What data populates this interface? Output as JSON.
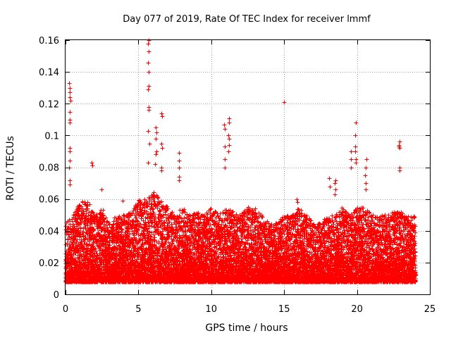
{
  "chart_data": {
    "type": "scatter",
    "title": "Day 077 of 2019, Rate Of TEC Index for receiver lmmf",
    "xlabel": "GPS time / hours",
    "ylabel": "ROTI / TECUs",
    "xlim": [
      0,
      25
    ],
    "ylim": [
      0,
      0.16
    ],
    "x_ticks": [
      0,
      5,
      10,
      15,
      20,
      25
    ],
    "x_tick_labels": [
      "0",
      "5",
      "10",
      "15",
      "20",
      "25"
    ],
    "y_ticks": [
      0,
      0.02,
      0.04,
      0.06,
      0.08,
      0.1,
      0.12,
      0.14,
      0.16
    ],
    "y_tick_labels": [
      "0",
      "0.02",
      "0.04",
      "0.06",
      "0.08",
      "0.1",
      "0.12",
      "0.14",
      "0.16"
    ],
    "grid": true,
    "marker": "plus",
    "color": "#ff0000",
    "series": [
      {
        "name": "ROTI",
        "baseline_profile": {
          "x": [
            0,
            0.5,
            1,
            1.5,
            2,
            2.5,
            3,
            3.5,
            4,
            4.5,
            5,
            5.5,
            6,
            6.5,
            7,
            7.5,
            8,
            8.5,
            9,
            9.5,
            10,
            10.5,
            11,
            11.5,
            12,
            12.5,
            13,
            13.5,
            14,
            14.5,
            15,
            15.5,
            16,
            16.5,
            17,
            17.5,
            18,
            18.5,
            19,
            19.5,
            20,
            20.5,
            21,
            21.5,
            22,
            22.5,
            23,
            23.5,
            24
          ],
          "upper_envelope": [
            0.045,
            0.05,
            0.058,
            0.06,
            0.05,
            0.055,
            0.045,
            0.05,
            0.05,
            0.052,
            0.06,
            0.06,
            0.065,
            0.06,
            0.055,
            0.05,
            0.055,
            0.05,
            0.052,
            0.05,
            0.055,
            0.05,
            0.055,
            0.052,
            0.05,
            0.055,
            0.055,
            0.05,
            0.045,
            0.045,
            0.05,
            0.05,
            0.055,
            0.05,
            0.045,
            0.045,
            0.05,
            0.05,
            0.055,
            0.05,
            0.055,
            0.055,
            0.05,
            0.05,
            0.05,
            0.052,
            0.052,
            0.05,
            0.05
          ],
          "typical_low": 0.008
        },
        "spikes": [
          {
            "x": 0.3,
            "values": [
              0.133,
              0.13,
              0.127,
              0.124,
              0.122,
              0.115,
              0.11,
              0.108,
              0.092,
              0.09,
              0.084,
              0.08,
              0.072,
              0.069
            ]
          },
          {
            "x": 1.8,
            "values": [
              0.083,
              0.081
            ]
          },
          {
            "x": 2.5,
            "values": [
              0.066
            ]
          },
          {
            "x": 3.9,
            "values": [
              0.059
            ]
          },
          {
            "x": 5.7,
            "values": [
              0.16,
              0.158,
              0.153,
              0.146,
              0.14,
              0.131,
              0.129,
              0.118,
              0.116,
              0.103,
              0.095,
              0.083
            ]
          },
          {
            "x": 6.2,
            "values": [
              0.105,
              0.102,
              0.098,
              0.09,
              0.088,
              0.082
            ]
          },
          {
            "x": 6.6,
            "values": [
              0.114,
              0.112,
              0.095,
              0.092,
              0.08,
              0.078
            ]
          },
          {
            "x": 7.8,
            "values": [
              0.089,
              0.084,
              0.08,
              0.074,
              0.072
            ]
          },
          {
            "x": 10.9,
            "values": [
              0.107,
              0.104,
              0.093,
              0.085,
              0.08
            ]
          },
          {
            "x": 11.2,
            "values": [
              0.111,
              0.108,
              0.1,
              0.098,
              0.094,
              0.09
            ]
          },
          {
            "x": 15.0,
            "values": [
              0.121
            ]
          },
          {
            "x": 15.9,
            "values": [
              0.06,
              0.058
            ]
          },
          {
            "x": 18.1,
            "values": [
              0.073,
              0.068
            ]
          },
          {
            "x": 18.5,
            "values": [
              0.072,
              0.07,
              0.066,
              0.063
            ]
          },
          {
            "x": 19.6,
            "values": [
              0.09,
              0.085,
              0.08
            ]
          },
          {
            "x": 19.9,
            "values": [
              0.108,
              0.1,
              0.093,
              0.09,
              0.085,
              0.083
            ]
          },
          {
            "x": 20.6,
            "values": [
              0.085,
              0.08,
              0.075,
              0.07,
              0.066
            ]
          },
          {
            "x": 22.9,
            "values": [
              0.096,
              0.094,
              0.093,
              0.092,
              0.08,
              0.078
            ]
          }
        ]
      }
    ]
  }
}
